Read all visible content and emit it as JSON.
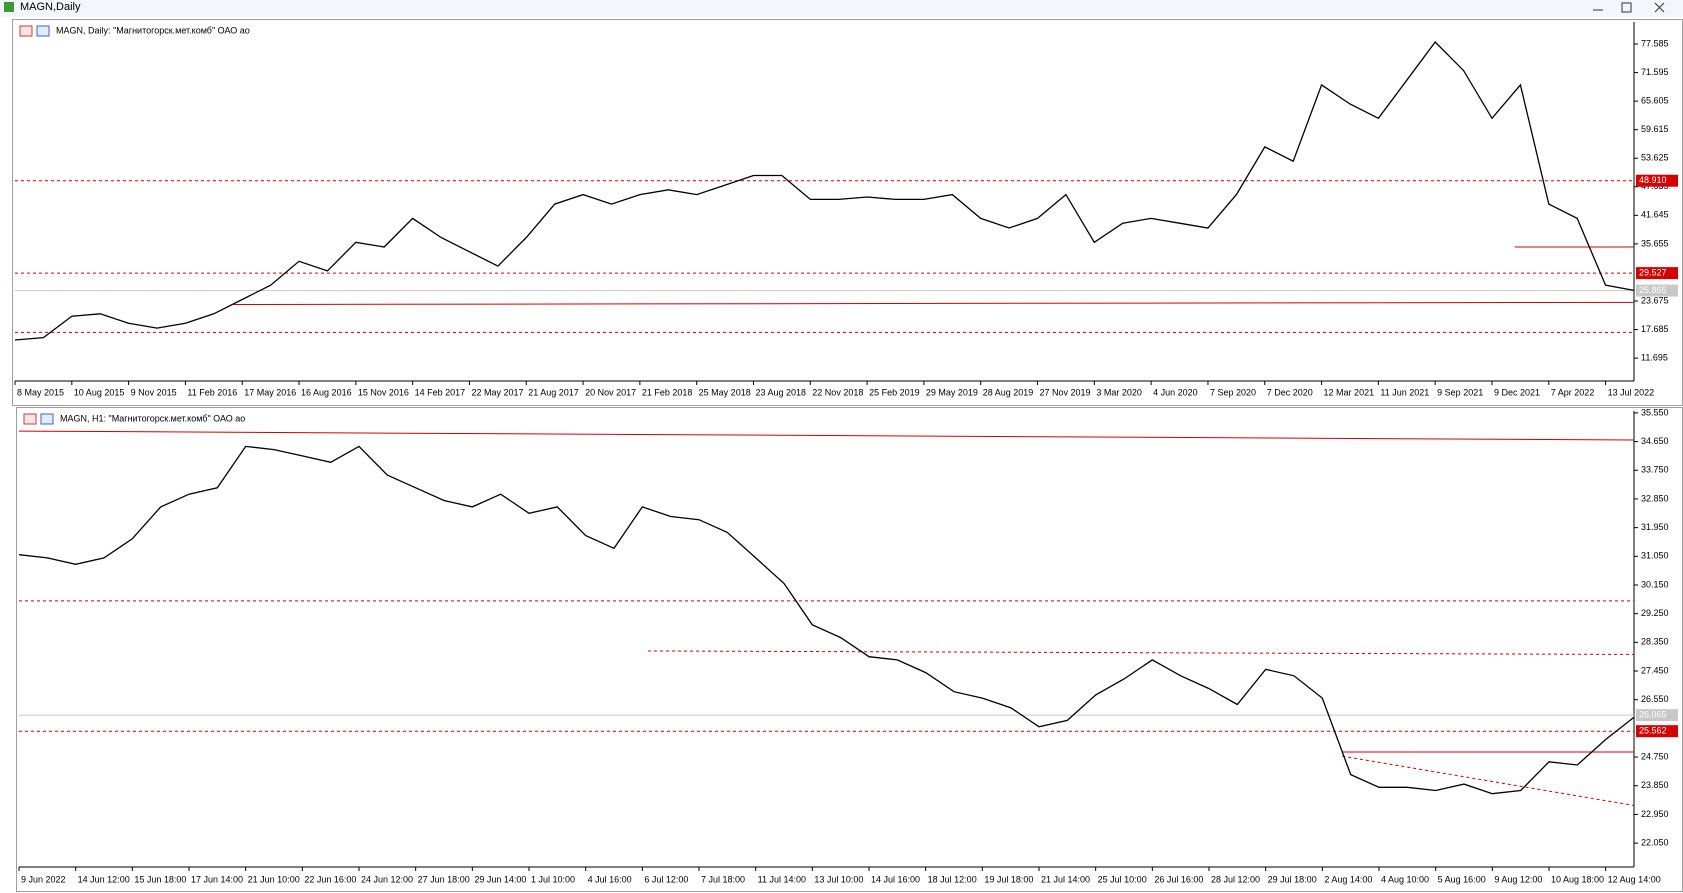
{
  "window": {
    "title": "MAGN,Daily"
  },
  "chart_data": [
    {
      "type": "line",
      "title": "MAGN, Daily:  \"Магнитогорск.мет.комб\" ОАО ао",
      "color": "#000000",
      "categories": [
        "8 May 2015",
        null,
        "10 Aug 2015",
        null,
        "9 Nov 2015",
        null,
        "11 Feb 2016",
        null,
        "17 May 2016",
        null,
        "16 Aug 2016",
        null,
        "15 Nov 2016",
        null,
        "14 Feb 2017",
        null,
        "22 May 2017",
        null,
        "21 Aug 2017",
        null,
        "20 Nov 2017",
        null,
        "21 Feb 2018",
        null,
        "25 May 2018",
        null,
        "23 Aug 2018",
        null,
        "22 Nov 2018",
        null,
        "25 Feb 2019",
        null,
        "29 May 2019",
        null,
        "28 Aug 2019",
        null,
        "27 Nov 2019",
        null,
        "3 Mar 2020",
        null,
        "4 Jun 2020",
        null,
        "7 Sep 2020",
        null,
        "7 Dec 2020",
        null,
        "12 Mar 2021",
        null,
        "11 Jun 2021",
        null,
        "9 Sep 2021",
        null,
        "9 Dec 2021",
        null,
        "7 Apr 2022",
        null,
        "13 Jul 2022",
        null
      ],
      "values": [
        15.5,
        16,
        20.5,
        21,
        19,
        18,
        19,
        21,
        24,
        27,
        32,
        30,
        36,
        35,
        41,
        37,
        34,
        31,
        37,
        44,
        46,
        44,
        46,
        47,
        46,
        48,
        50,
        50,
        45,
        45,
        45.5,
        45,
        45,
        46,
        41,
        39,
        41,
        46,
        36,
        40,
        41,
        40,
        39,
        46,
        56,
        53,
        69,
        65,
        62,
        70,
        78,
        72,
        62,
        69,
        44,
        41,
        27,
        25.9
      ],
      "ylim": [
        6.9,
        82.2
      ],
      "yticks": [
        77.585,
        71.595,
        65.605,
        59.615,
        53.625,
        47.635,
        41.645,
        35.655,
        23.675,
        17.685,
        11.695
      ],
      "hlines": [
        {
          "value": 48.91,
          "label": "48.910",
          "style": "dashed",
          "color": "#d40000",
          "tag": true
        },
        {
          "value": 29.527,
          "style": "dashed",
          "color": "#d40000",
          "tag": true
        },
        {
          "value": 17.09,
          "style": "dashed",
          "color": "#d40000",
          "tag": false
        },
        {
          "value": 25.865,
          "style": "solid",
          "color": "#c8c8c8",
          "tag": true
        }
      ],
      "segments": [
        {
          "start": 7.7,
          "end": 57,
          "values": [
            22.94,
            23.4
          ],
          "style": "solid",
          "color": "#d40000"
        },
        {
          "start": 52.8,
          "end": 57,
          "values": [
            35.0,
            35.0
          ],
          "style": "solid",
          "color": "#d40000"
        }
      ]
    },
    {
      "type": "line",
      "title": "MAGN, H1:  \"Магнитогорск.мет.комб\" ОАО ао",
      "color": "#000000",
      "categories": [
        "9 Jun 2022",
        null,
        "14 Jun 12:00",
        null,
        "15 Jun 18:00",
        null,
        "17 Jun 14:00",
        null,
        "21 Jun 10:00",
        null,
        "22 Jun 16:00",
        null,
        "24 Jun 12:00",
        null,
        "27 Jun 18:00",
        null,
        "29 Jun 14:00",
        null,
        "1 Jul 10:00",
        null,
        "4 Jul 16:00",
        null,
        "6 Jul 12:00",
        null,
        "7 Jul 18:00",
        null,
        "11 Jul 14:00",
        null,
        "13 Jul 10:00",
        null,
        "14 Jul 16:00",
        null,
        "18 Jul 12:00",
        null,
        "19 Jul 18:00",
        null,
        "21 Jul 14:00",
        null,
        "25 Jul 10:00",
        null,
        "26 Jul 16:00",
        null,
        "28 Jul 12:00",
        null,
        "29 Jul 18:00",
        null,
        "2 Aug 14:00",
        null,
        "4 Aug 10:00",
        null,
        "5 Aug 16:00",
        null,
        "9 Aug 12:00",
        null,
        "10 Aug 18:00",
        null,
        "12 Aug 14:00",
        null
      ],
      "values": [
        31.1,
        31.0,
        30.8,
        31.0,
        31.6,
        32.6,
        33.0,
        33.2,
        34.5,
        34.4,
        34.2,
        34.0,
        34.5,
        33.6,
        33.2,
        32.8,
        32.6,
        33.0,
        32.4,
        32.6,
        31.7,
        31.3,
        32.6,
        32.3,
        32.2,
        31.8,
        31.0,
        30.2,
        28.9,
        28.5,
        27.9,
        27.8,
        27.4,
        26.8,
        26.6,
        26.3,
        25.7,
        25.9,
        26.7,
        27.2,
        27.8,
        27.3,
        26.9,
        26.4,
        27.5,
        27.3,
        26.6,
        24.2,
        23.8,
        23.8,
        23.7,
        23.9,
        23.6,
        23.7,
        24.6,
        24.5,
        25.3,
        26.0
      ],
      "ylim": [
        21.3,
        35.61
      ],
      "yticks": [
        {
          "value": 35.55,
          "label": "35.550"
        },
        {
          "value": 34.65,
          "label": "34.650"
        },
        {
          "value": 33.75,
          "label": "33.750"
        },
        {
          "value": 32.85,
          "label": "32.850"
        },
        {
          "value": 31.95,
          "label": "31.950"
        },
        {
          "value": 31.05,
          "label": "31.050"
        },
        {
          "value": 30.15,
          "label": "30.150"
        },
        {
          "value": 29.25,
          "label": "29.250"
        },
        {
          "value": 28.35,
          "label": "28.350"
        },
        {
          "value": 27.45,
          "label": "27.450"
        },
        {
          "value": 26.55,
          "label": "26.550"
        },
        {
          "value": 24.75,
          "label": "24.750"
        },
        {
          "value": 23.85,
          "label": "23.850"
        },
        {
          "value": 22.95,
          "label": "22.950"
        },
        {
          "value": 22.05,
          "label": "22.050"
        }
      ],
      "hlines": [
        {
          "value": 29.65,
          "style": "dashed",
          "color": "#d40000",
          "tag": false
        },
        {
          "value": 26.065,
          "style": "solid",
          "color": "#c8c8c8",
          "tag": true
        },
        {
          "value": 25.562,
          "style": "dashed",
          "color": "#d40000",
          "tag": true
        }
      ],
      "segments": [
        {
          "start": 0,
          "end": 57,
          "values": [
            34.98,
            34.7
          ],
          "style": "solid",
          "color": "#d40000"
        },
        {
          "start": 22.2,
          "end": 57,
          "values": [
            28.08,
            27.97
          ],
          "style": "dashed",
          "color": "#d40000"
        },
        {
          "start": 46.7,
          "end": 57,
          "values": [
            24.91,
            24.91
          ],
          "style": "solid",
          "color": "#d40000"
        },
        {
          "start": 46.7,
          "end": 57,
          "values": [
            24.78,
            23.23
          ],
          "style": "dashed",
          "color": "#d40000"
        }
      ]
    }
  ]
}
